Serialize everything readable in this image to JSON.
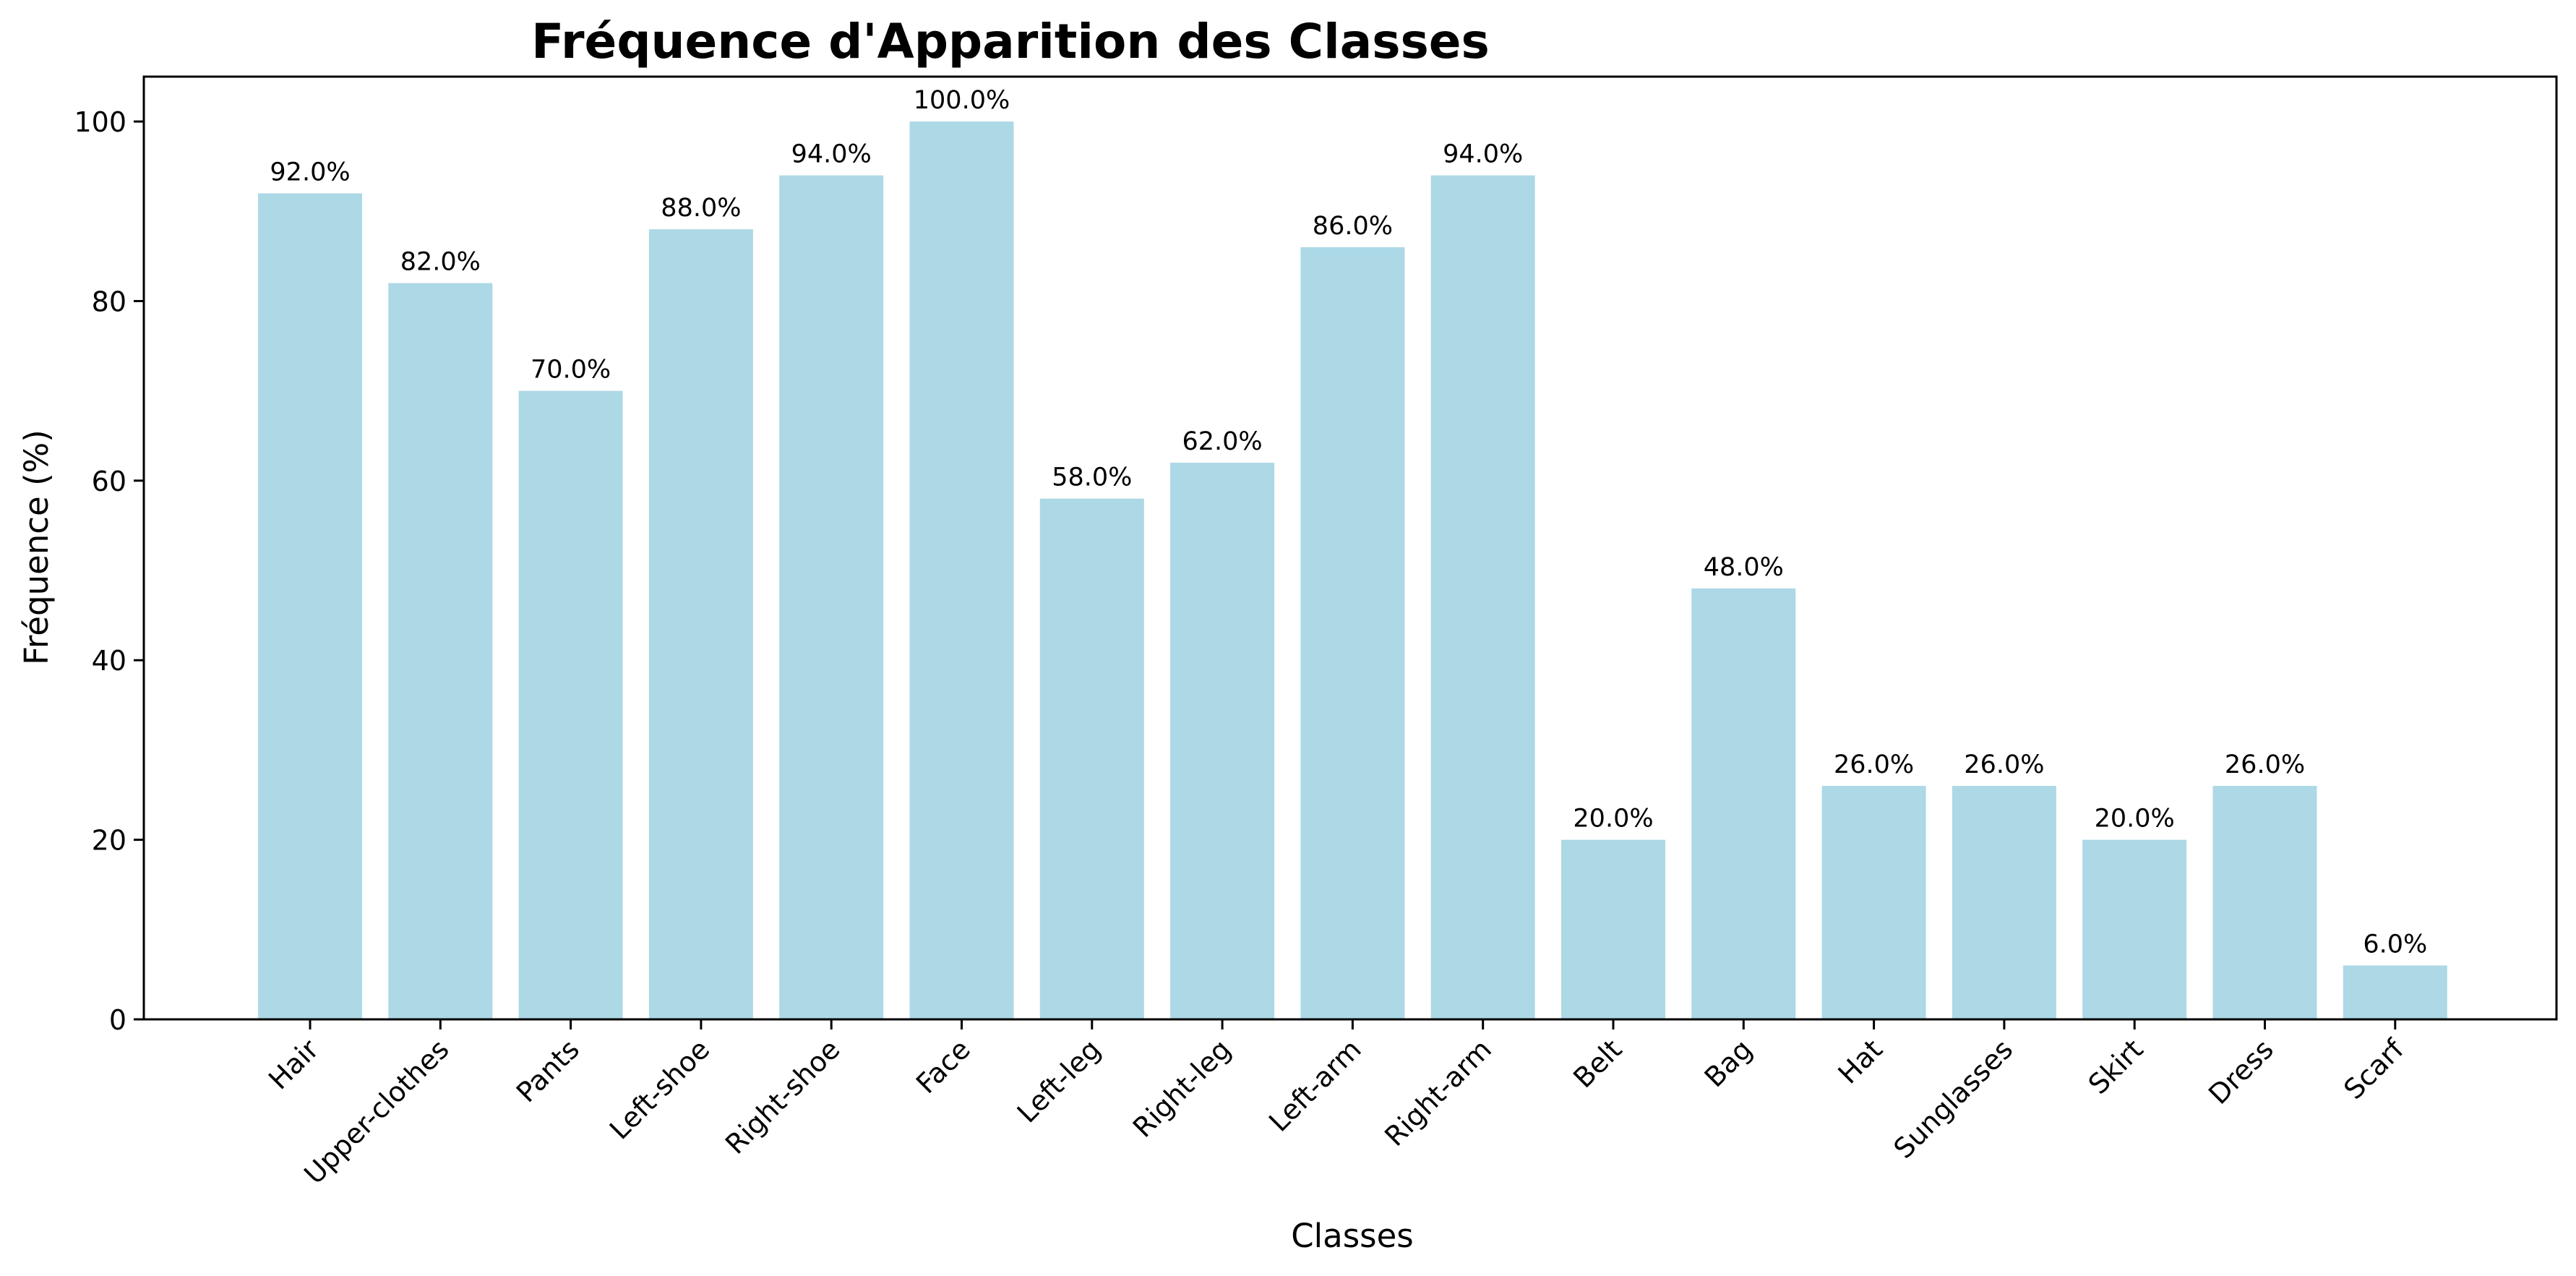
{
  "chart_data": {
    "type": "bar",
    "title": "Fréquence d'Apparition des Classes",
    "xlabel": "Classes",
    "ylabel": "Fréquence (%)",
    "categories": [
      "Hair",
      "Upper-clothes",
      "Pants",
      "Left-shoe",
      "Right-shoe",
      "Face",
      "Left-leg",
      "Right-leg",
      "Left-arm",
      "Right-arm",
      "Belt",
      "Bag",
      "Hat",
      "Sunglasses",
      "Skirt",
      "Dress",
      "Scarf"
    ],
    "values": [
      92.0,
      82.0,
      70.0,
      88.0,
      94.0,
      100.0,
      58.0,
      62.0,
      86.0,
      94.0,
      20.0,
      48.0,
      26.0,
      26.0,
      20.0,
      26.0,
      6.0
    ],
    "data_labels": [
      "92.0%",
      "82.0%",
      "70.0%",
      "88.0%",
      "94.0%",
      "100.0%",
      "58.0%",
      "62.0%",
      "86.0%",
      "94.0%",
      "20.0%",
      "48.0%",
      "26.0%",
      "26.0%",
      "20.0%",
      "26.0%",
      "6.0%"
    ],
    "ylim": [
      0,
      105
    ],
    "yticks": [
      0,
      20,
      40,
      60,
      80,
      100
    ],
    "ytick_labels": [
      "0",
      "20",
      "40",
      "60",
      "80",
      "100"
    ],
    "grid": false,
    "legend": "none",
    "colors": {
      "bar": "#add8e6",
      "axis": "#000000",
      "background": "#ffffff"
    }
  }
}
